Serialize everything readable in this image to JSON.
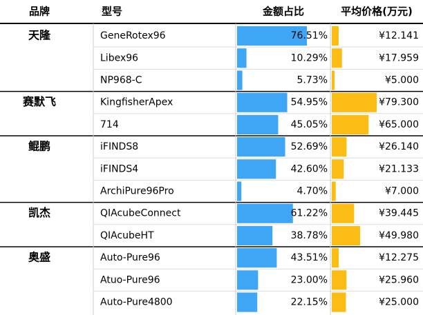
{
  "header": {
    "brand": "品牌",
    "model": "型号",
    "share": "金额占比",
    "price": "平均价格(万元)"
  },
  "groups": [
    {
      "brand": "天隆",
      "rows": [
        {
          "model": "GeneRotex96",
          "share": {
            "value": 76.51,
            "label": "76.51%"
          },
          "price": {
            "value": 12.141,
            "label": "¥12.141"
          }
        },
        {
          "model": "Libex96",
          "share": {
            "value": 10.29,
            "label": "10.29%"
          },
          "price": {
            "value": 17.959,
            "label": "¥17.959"
          }
        },
        {
          "model": "NP968-C",
          "share": {
            "value": 5.73,
            "label": "5.73%"
          },
          "price": {
            "value": 5.0,
            "label": "¥5.000"
          }
        }
      ]
    },
    {
      "brand": "赛默飞",
      "rows": [
        {
          "model": "KingfisherApex",
          "share": {
            "value": 54.95,
            "label": "54.95%"
          },
          "price": {
            "value": 79.3,
            "label": "¥79.300"
          }
        },
        {
          "model": "714",
          "share": {
            "value": 45.05,
            "label": "45.05%"
          },
          "price": {
            "value": 65.0,
            "label": "¥65.000"
          }
        }
      ]
    },
    {
      "brand": "鲲鹏",
      "rows": [
        {
          "model": "iFINDS8",
          "share": {
            "value": 52.69,
            "label": "52.69%"
          },
          "price": {
            "value": 26.14,
            "label": "¥26.140"
          }
        },
        {
          "model": "iFINDS4",
          "share": {
            "value": 42.6,
            "label": "42.60%"
          },
          "price": {
            "value": 21.133,
            "label": "¥21.133"
          }
        },
        {
          "model": "ArchiPure96Pro",
          "share": {
            "value": 4.7,
            "label": "4.70%"
          },
          "price": {
            "value": 7.0,
            "label": "¥7.000"
          }
        }
      ]
    },
    {
      "brand": "凯杰",
      "rows": [
        {
          "model": "QIAcubeConnect",
          "share": {
            "value": 61.22,
            "label": "61.22%"
          },
          "price": {
            "value": 39.445,
            "label": "¥39.445"
          }
        },
        {
          "model": "QIAcubeHT",
          "share": {
            "value": 38.78,
            "label": "38.78%"
          },
          "price": {
            "value": 49.98,
            "label": "¥49.980"
          }
        }
      ]
    },
    {
      "brand": "奥盛",
      "rows": [
        {
          "model": "Auto-Pure96",
          "share": {
            "value": 43.51,
            "label": "43.51%"
          },
          "price": {
            "value": 12.275,
            "label": "¥12.275"
          }
        },
        {
          "model": "Atuo-Pure96",
          "share": {
            "value": 23.0,
            "label": "23.00%"
          },
          "price": {
            "value": 25.96,
            "label": "¥25.960"
          }
        },
        {
          "model": "Auto-Pure4800",
          "share": {
            "value": 22.15,
            "label": "22.15%"
          },
          "price": {
            "value": 25.0,
            "label": "¥25.000"
          }
        }
      ]
    }
  ]
}
